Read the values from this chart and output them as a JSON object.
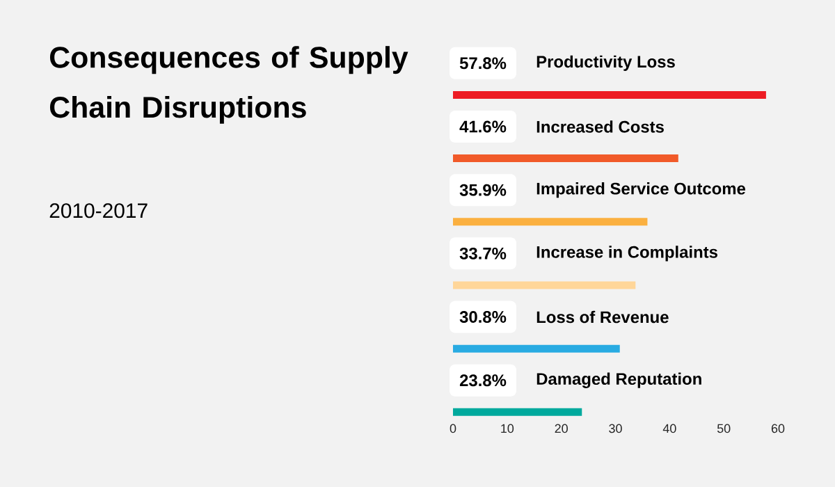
{
  "chart_data": {
    "type": "bar",
    "orientation": "horizontal",
    "title": "Consequences of Supply Chain Disruptions",
    "subtitle": "2010-2017",
    "categories": [
      "Productivity Loss",
      "Increased Costs",
      "Impaired Service Outcome",
      "Increase in Complaints",
      "Loss of Revenue",
      "Damaged Reputation"
    ],
    "values": [
      57.8,
      41.6,
      35.9,
      33.7,
      30.8,
      23.8
    ],
    "value_labels": [
      "57.8%",
      "41.6%",
      "35.9%",
      "33.7%",
      "30.8%",
      "23.8%"
    ],
    "colors": [
      "#ed1c24",
      "#f15a29",
      "#fbb040",
      "#ffd699",
      "#29abe2",
      "#00a99d"
    ],
    "xlim": [
      0,
      60
    ],
    "xticks": [
      0,
      10,
      20,
      30,
      40,
      50,
      60
    ],
    "grid": false
  }
}
